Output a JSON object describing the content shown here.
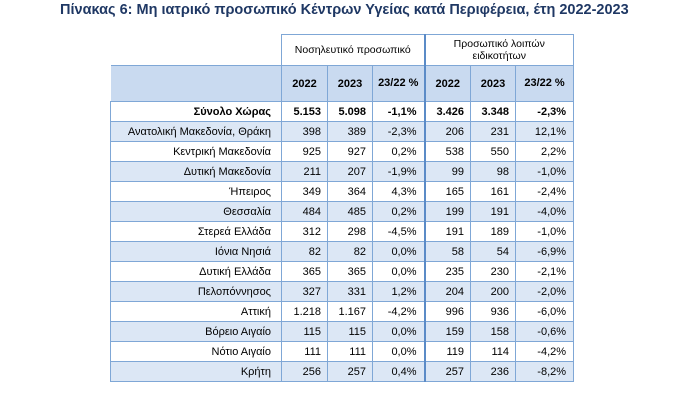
{
  "title": "Πίνακας 6: Μη ιατρικό προσωπικό Κέντρων Υγείας κατά Περιφέρεια, έτη 2022-2023",
  "groups": {
    "nursing": "Νοσηλευτικό προσωπικό",
    "other": "Προσωπικό λοιπών ειδικοτήτων"
  },
  "subheaders": {
    "y2022": "2022",
    "y2023": "2023",
    "change": "23/22 %"
  },
  "rows": [
    {
      "region": "Σύνολο Χώρας",
      "n22": "5.153",
      "n23": "5.098",
      "nch": "-1,1%",
      "o22": "3.426",
      "o23": "3.348",
      "och": "-2,3%"
    },
    {
      "region": "Ανατολική Μακεδονία, Θράκη",
      "n22": "398",
      "n23": "389",
      "nch": "-2,3%",
      "o22": "206",
      "o23": "231",
      "och": "12,1%"
    },
    {
      "region": "Κεντρική Μακεδονία",
      "n22": "925",
      "n23": "927",
      "nch": "0,2%",
      "o22": "538",
      "o23": "550",
      "och": "2,2%"
    },
    {
      "region": "Δυτική Μακεδονία",
      "n22": "211",
      "n23": "207",
      "nch": "-1,9%",
      "o22": "99",
      "o23": "98",
      "och": "-1,0%"
    },
    {
      "region": "Ήπειρος",
      "n22": "349",
      "n23": "364",
      "nch": "4,3%",
      "o22": "165",
      "o23": "161",
      "och": "-2,4%"
    },
    {
      "region": "Θεσσαλία",
      "n22": "484",
      "n23": "485",
      "nch": "0,2%",
      "o22": "199",
      "o23": "191",
      "och": "-4,0%"
    },
    {
      "region": "Στερεά Ελλάδα",
      "n22": "312",
      "n23": "298",
      "nch": "-4,5%",
      "o22": "191",
      "o23": "189",
      "och": "-1,0%"
    },
    {
      "region": "Ιόνια Νησιά",
      "n22": "82",
      "n23": "82",
      "nch": "0,0%",
      "o22": "58",
      "o23": "54",
      "och": "-6,9%"
    },
    {
      "region": "Δυτική Ελλάδα",
      "n22": "365",
      "n23": "365",
      "nch": "0,0%",
      "o22": "235",
      "o23": "230",
      "och": "-2,1%"
    },
    {
      "region": "Πελοπόννησος",
      "n22": "327",
      "n23": "331",
      "nch": "1,2%",
      "o22": "204",
      "o23": "200",
      "och": "-2,0%"
    },
    {
      "region": "Αττική",
      "n22": "1.218",
      "n23": "1.167",
      "nch": "-4,2%",
      "o22": "996",
      "o23": "936",
      "och": "-6,0%"
    },
    {
      "region": "Βόρειο Αιγαίο",
      "n22": "115",
      "n23": "115",
      "nch": "0,0%",
      "o22": "159",
      "o23": "158",
      "och": "-0,6%"
    },
    {
      "region": "Νότιο Αιγαίο",
      "n22": "111",
      "n23": "111",
      "nch": "0,0%",
      "o22": "119",
      "o23": "114",
      "och": "-4,2%"
    },
    {
      "region": "Κρήτη",
      "n22": "256",
      "n23": "257",
      "nch": "0,4%",
      "o22": "257",
      "o23": "236",
      "och": "-8,2%"
    }
  ]
}
